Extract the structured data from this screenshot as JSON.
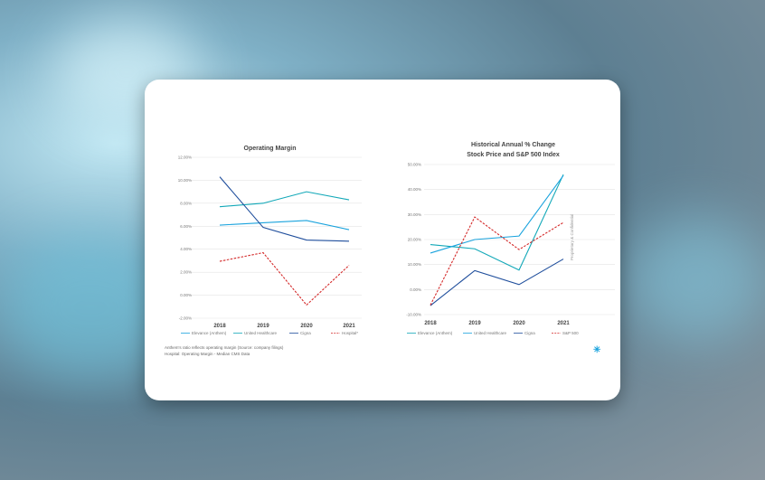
{
  "slide": {
    "footnotes": [
      "Anthem's ratio reflects operating margin (Source: company filings)",
      "Hospital: Operating Margin - Median CMS Data"
    ],
    "side_text": "Proprietary & Confidential"
  },
  "chart_data": [
    {
      "type": "line",
      "title": "Operating Margin",
      "categories": [
        "2018",
        "2019",
        "2020",
        "2021"
      ],
      "yticks": [
        "12.00%",
        "10.00%",
        "8.00%",
        "6.00%",
        "4.00%",
        "2.00%",
        "0.00%",
        "-2.00%"
      ],
      "ylim": [
        -2,
        12
      ],
      "series": [
        {
          "name": "Elevance (Anthem)",
          "color": "#1aa3dd",
          "dash": false,
          "values": [
            6.1,
            6.3,
            6.5,
            5.7
          ]
        },
        {
          "name": "United Healthcare",
          "color": "#12a8b8",
          "dash": false,
          "values": [
            7.7,
            8.0,
            9.0,
            8.3
          ]
        },
        {
          "name": "Cigna",
          "color": "#1f4e9c",
          "dash": false,
          "values": [
            10.3,
            5.9,
            4.8,
            4.7
          ]
        },
        {
          "name": "Hospital*",
          "color": "#d42a2a",
          "dash": true,
          "values": [
            2.95,
            3.7,
            -0.85,
            2.6
          ]
        }
      ]
    },
    {
      "type": "line",
      "title": "Historical Annual % Change",
      "subtitle": "Stock Price and S&P 500 Index",
      "categories": [
        "2018",
        "2019",
        "2020",
        "2021"
      ],
      "yticks": [
        "50.00%",
        "40.00%",
        "30.00%",
        "20.00%",
        "10.00%",
        "0.00%",
        "-10.00%"
      ],
      "ylim": [
        -10,
        50
      ],
      "series": [
        {
          "name": "Elevance (Anthem)",
          "color": "#12a8b8",
          "dash": false,
          "values": [
            18,
            16.3,
            7.8,
            46
          ]
        },
        {
          "name": "United Healthcare",
          "color": "#1aa3dd",
          "dash": false,
          "values": [
            14.6,
            20,
            21.4,
            45.6
          ]
        },
        {
          "name": "Cigna",
          "color": "#1f4e9c",
          "dash": false,
          "values": [
            -6.4,
            7.6,
            2,
            12.2
          ]
        },
        {
          "name": "S&P 500",
          "color": "#d42a2a",
          "dash": true,
          "values": [
            -6.2,
            29,
            16,
            26.8
          ]
        }
      ]
    }
  ]
}
